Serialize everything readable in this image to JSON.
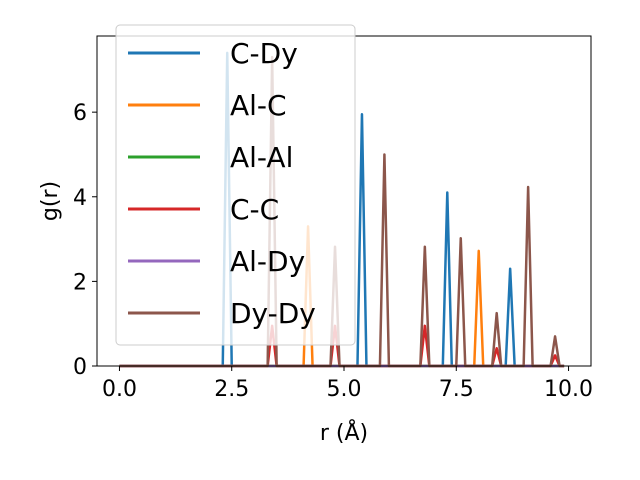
{
  "chart_data": {
    "type": "line",
    "title": "",
    "xlabel": "r (Å)",
    "ylabel": "g(r)",
    "xlim": [
      -0.5,
      10.5
    ],
    "ylim": [
      0,
      7.8
    ],
    "xticks": [
      0.0,
      2.5,
      5.0,
      7.5,
      10.0
    ],
    "xtick_labels": [
      "0.0",
      "2.5",
      "5.0",
      "7.5",
      "10.0"
    ],
    "yticks": [
      0,
      2,
      4,
      6
    ],
    "ytick_labels": [
      "0",
      "2",
      "4",
      "6"
    ],
    "grid": false,
    "legend_position": "upper-left",
    "series": [
      {
        "name": "C-Dy",
        "color": "#1f77b4",
        "peaks": [
          [
            2.4,
            7.4
          ],
          [
            5.4,
            5.95
          ],
          [
            7.3,
            4.1
          ],
          [
            8.7,
            2.3
          ]
        ]
      },
      {
        "name": "Al-C",
        "color": "#ff7f0e",
        "peaks": [
          [
            4.2,
            3.3
          ],
          [
            8.0,
            2.72
          ]
        ]
      },
      {
        "name": "Al-Al",
        "color": "#2ca02c",
        "peaks": []
      },
      {
        "name": "C-C",
        "color": "#d62728",
        "peaks": [
          [
            3.4,
            0.95
          ],
          [
            4.8,
            0.95
          ],
          [
            6.8,
            0.95
          ],
          [
            8.4,
            0.42
          ],
          [
            9.7,
            0.25
          ]
        ]
      },
      {
        "name": "Al-Dy",
        "color": "#9467bd",
        "peaks": []
      },
      {
        "name": "Dy-Dy",
        "color": "#8c564b",
        "peaks": [
          [
            3.4,
            7.3
          ],
          [
            4.8,
            2.82
          ],
          [
            5.9,
            5.0
          ],
          [
            6.8,
            2.82
          ],
          [
            7.6,
            3.02
          ],
          [
            8.4,
            1.25
          ],
          [
            9.1,
            4.23
          ],
          [
            9.7,
            0.7
          ]
        ]
      }
    ],
    "legend_labels": [
      "C-Dy",
      "Al-C",
      "Al-Al",
      "C-C",
      "Al-Dy",
      "Dy-Dy"
    ]
  }
}
